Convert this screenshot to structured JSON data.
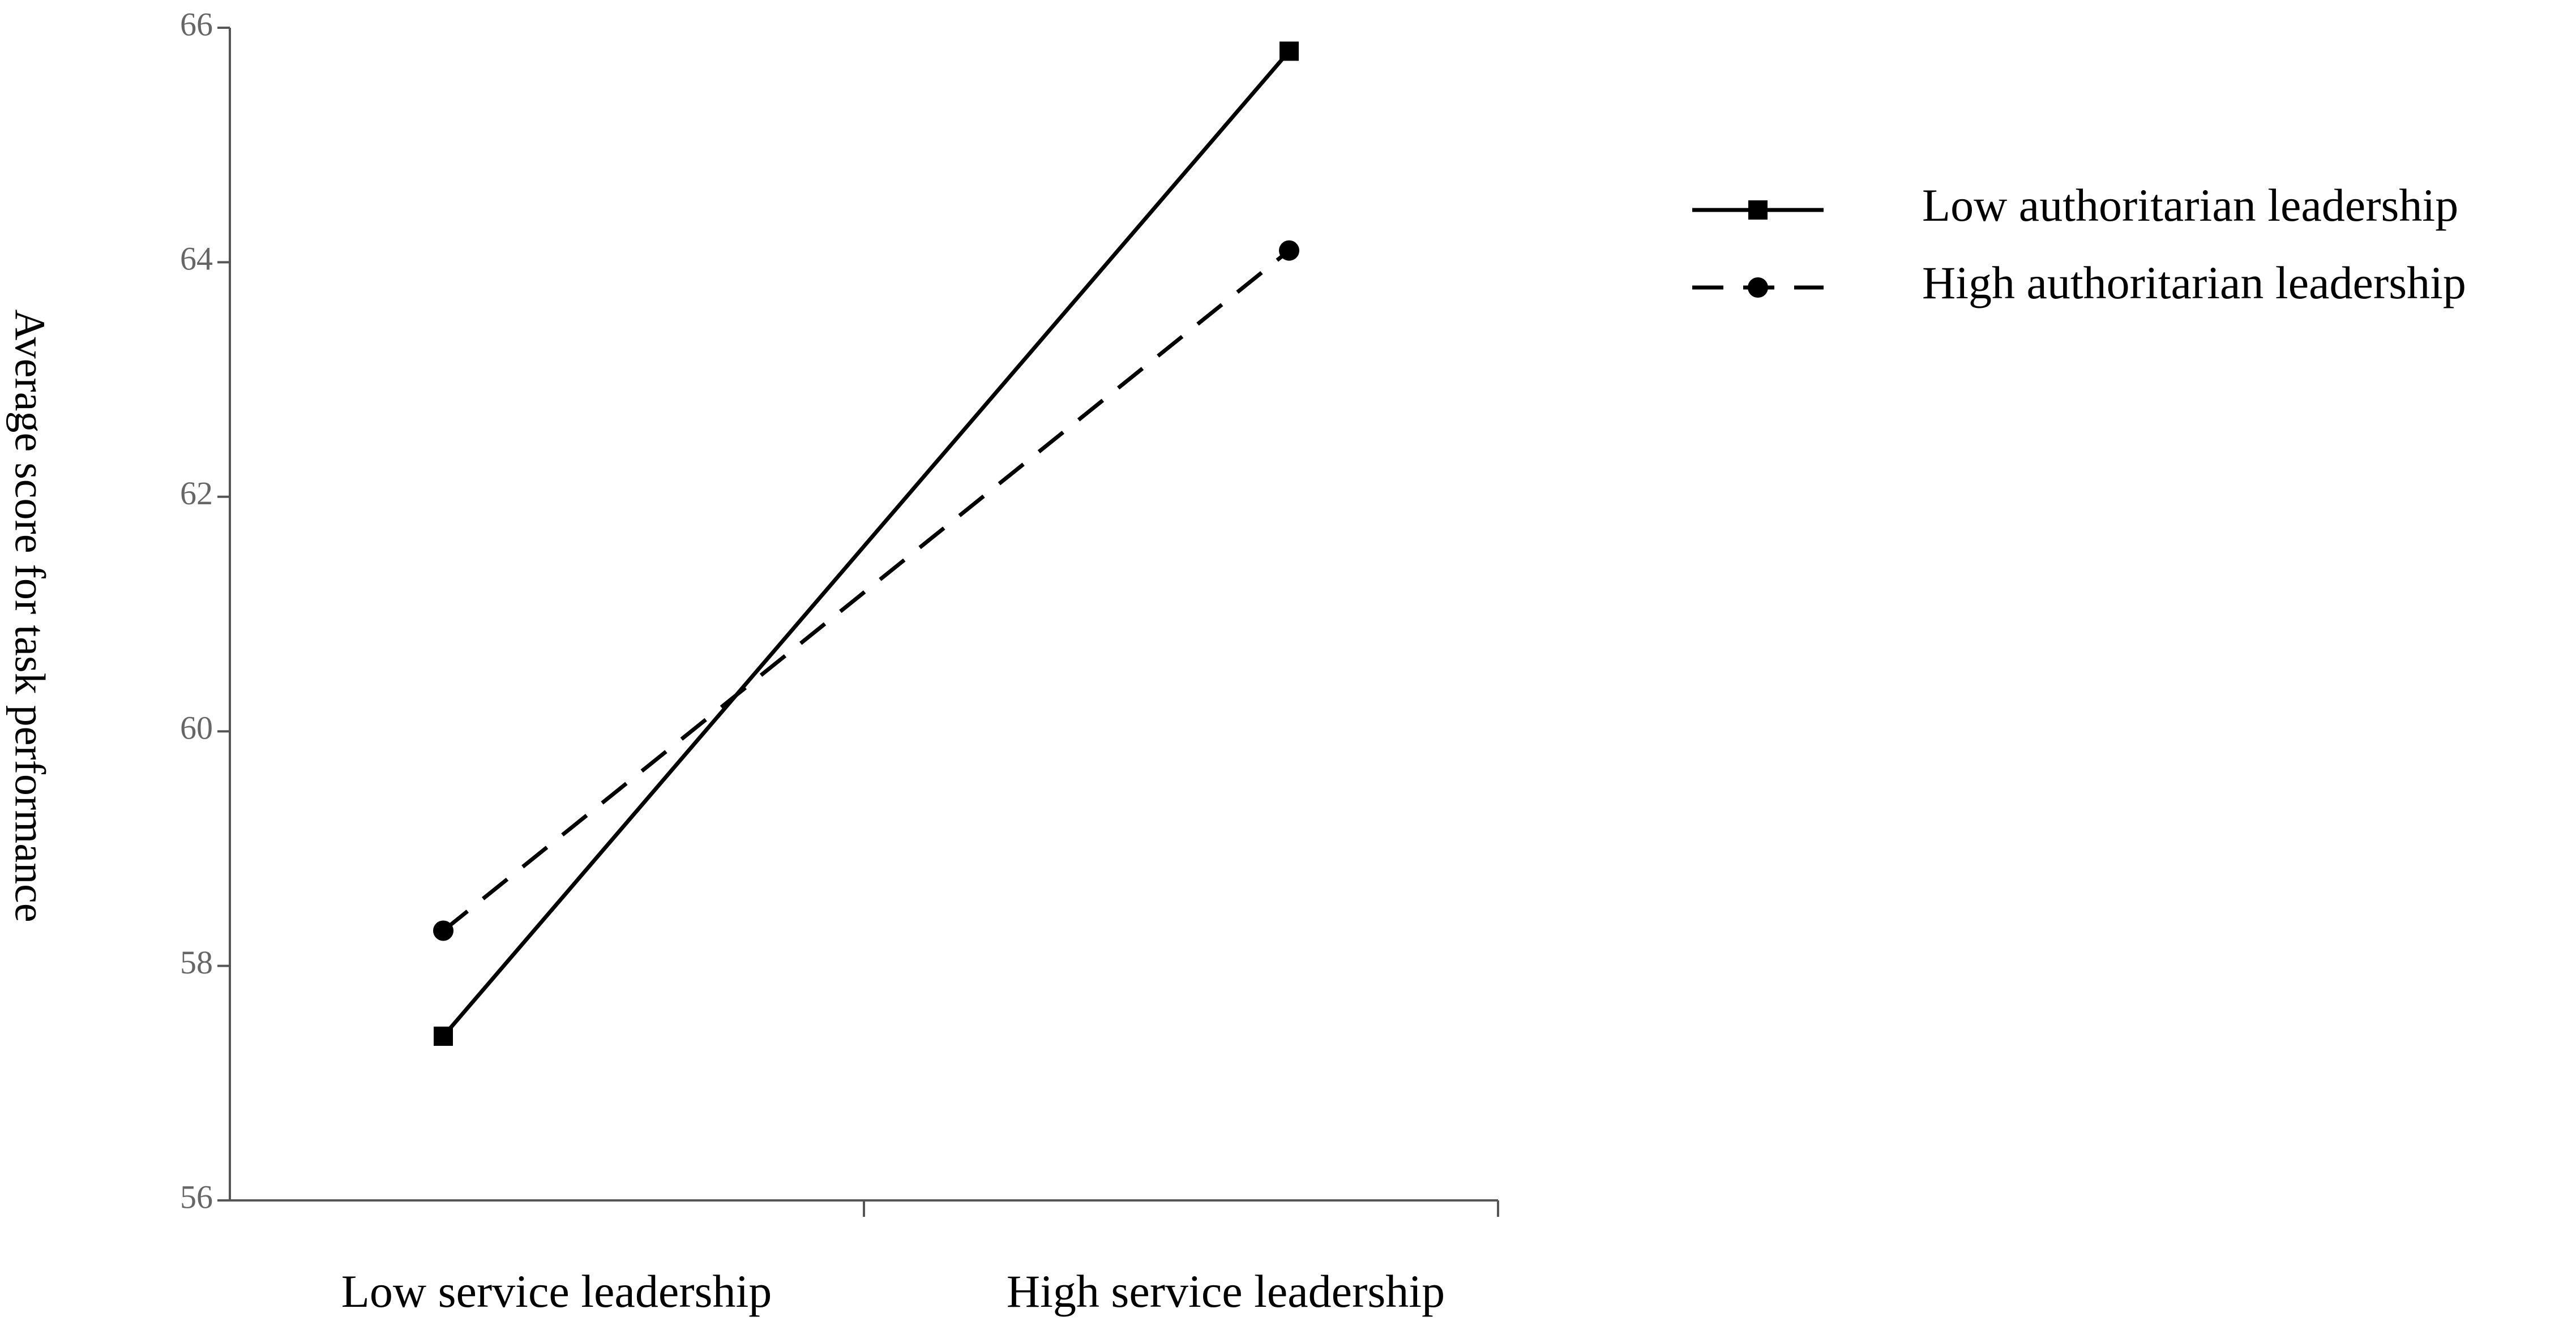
{
  "chart_data": {
    "type": "line",
    "y_label": "Average score for task performance",
    "categories": [
      "Low service leadership",
      "High service leadership"
    ],
    "series": [
      {
        "name": "Low authoritarian leadership",
        "color": "#000000",
        "style": "solid",
        "marker": "square",
        "values": [
          57.4,
          65.8
        ]
      },
      {
        "name": "High authoritarian leadership",
        "color": "#000000",
        "style": "dashed",
        "marker": "circle",
        "values": [
          58.3,
          64.1
        ]
      }
    ],
    "ylim": [
      56,
      66
    ],
    "yticks": [
      56,
      58,
      60,
      62,
      64,
      66
    ],
    "grid": false,
    "legend": "upper right"
  }
}
